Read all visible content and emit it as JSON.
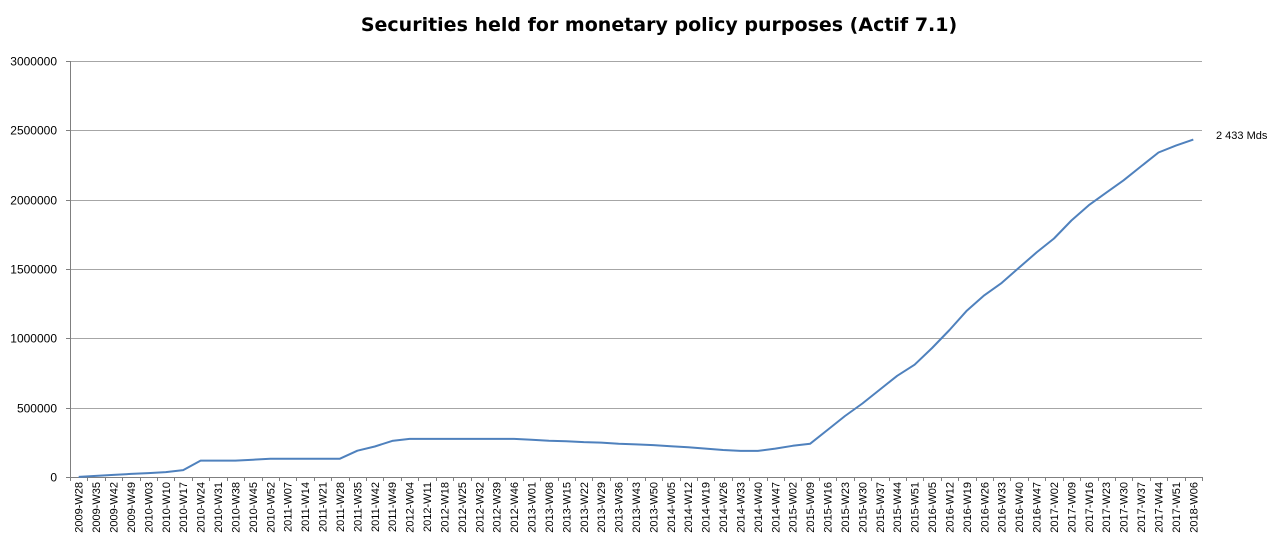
{
  "chart_data": {
    "type": "line",
    "title": "Securities held for monetary policy purposes (Actif 7.1)",
    "xlabel": "",
    "ylabel": "",
    "ylim": [
      0,
      3000000
    ],
    "yticks": [
      "0",
      "500000",
      "1000000",
      "1500000",
      "2000000",
      "2500000",
      "3000000"
    ],
    "grid": true,
    "legend": "none",
    "colors": {
      "series": "#4F81BD",
      "grid": "#a6a6a6",
      "axis": "#7f7f7f"
    },
    "x_tick_labels": [
      "2009-W28",
      "2009-W35",
      "2009-W42",
      "2009-W49",
      "2010-W03",
      "2010-W10",
      "2010-W17",
      "2010-W24",
      "2010-W31",
      "2010-W38",
      "2010-W45",
      "2010-W52",
      "2011-W07",
      "2011-W14",
      "2011-W21",
      "2011-W28",
      "2011-W35",
      "2011-W42",
      "2011-W49",
      "2012-W04",
      "2012-W11",
      "2012-W18",
      "2012-W25",
      "2012-W32",
      "2012-W39",
      "2012-W46",
      "2013-W01",
      "2013-W08",
      "2013-W15",
      "2013-W22",
      "2013-W29",
      "2013-W36",
      "2013-W43",
      "2013-W50",
      "2014-W05",
      "2014-W12",
      "2014-W19",
      "2014-W26",
      "2014-W33",
      "2014-W40",
      "2014-W47",
      "2015-W02",
      "2015-W09",
      "2015-W16",
      "2015-W23",
      "2015-W30",
      "2015-W37",
      "2015-W44",
      "2015-W51",
      "2016-W05",
      "2016-W12",
      "2016-W19",
      "2016-W26",
      "2016-W33",
      "2016-W40",
      "2016-W47",
      "2017-W02",
      "2017-W09",
      "2017-W16",
      "2017-W23",
      "2017-W30",
      "2017-W37",
      "2017-W44",
      "2017-W51",
      "2018-W06"
    ],
    "series": [
      {
        "x": [
          "2009-W28",
          "2009-W35",
          "2009-W42",
          "2009-W49",
          "2010-W03",
          "2010-W10",
          "2010-W17",
          "2010-W24",
          "2010-W31",
          "2010-W38",
          "2010-W45",
          "2010-W52",
          "2011-W07",
          "2011-W14",
          "2011-W21",
          "2011-W28",
          "2011-W35",
          "2011-W42",
          "2011-W49",
          "2012-W04",
          "2012-W11",
          "2012-W18",
          "2012-W25",
          "2012-W32",
          "2012-W39",
          "2012-W46",
          "2013-W01",
          "2013-W08",
          "2013-W15",
          "2013-W22",
          "2013-W29",
          "2013-W36",
          "2013-W43",
          "2013-W50",
          "2014-W05",
          "2014-W12",
          "2014-W19",
          "2014-W26",
          "2014-W33",
          "2014-W40",
          "2014-W47",
          "2015-W02",
          "2015-W09",
          "2015-W16",
          "2015-W23",
          "2015-W30",
          "2015-W37",
          "2015-W44",
          "2015-W51",
          "2016-W05",
          "2016-W12",
          "2016-W19",
          "2016-W26",
          "2016-W33",
          "2016-W40",
          "2016-W47",
          "2017-W02",
          "2017-W09",
          "2017-W16",
          "2017-W23",
          "2017-W30",
          "2017-W37",
          "2017-W44",
          "2017-W51",
          "2018-W06"
        ],
        "values": [
          1000,
          8000,
          15000,
          22000,
          28000,
          35000,
          50000,
          118000,
          118000,
          118000,
          125000,
          132000,
          132000,
          132000,
          132000,
          132000,
          190000,
          220000,
          260000,
          275000,
          275000,
          275000,
          275000,
          275000,
          275000,
          275000,
          268000,
          262000,
          258000,
          252000,
          248000,
          240000,
          235000,
          230000,
          222000,
          215000,
          205000,
          195000,
          188000,
          188000,
          205000,
          225000,
          240000,
          340000,
          440000,
          530000,
          630000,
          730000,
          810000,
          930000,
          1060000,
          1200000,
          1310000,
          1400000,
          1510000,
          1620000,
          1720000,
          1850000,
          1960000,
          2050000,
          2140000,
          2240000,
          2340000,
          2390000,
          2433000
        ]
      }
    ],
    "annotation": "2 433 Mds"
  }
}
